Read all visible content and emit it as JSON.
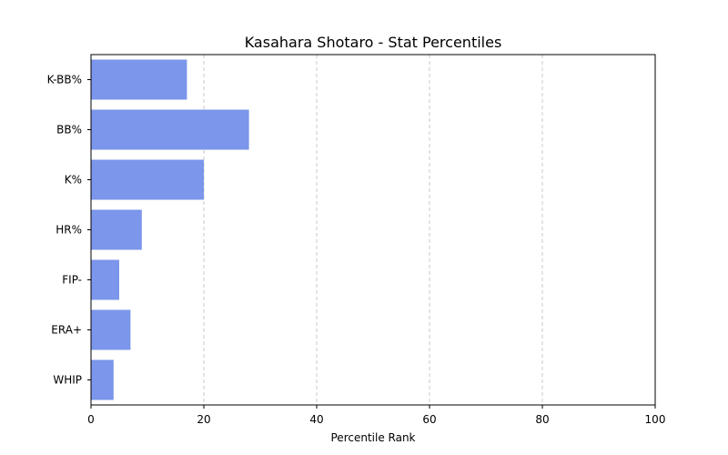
{
  "chart_data": {
    "type": "bar",
    "orientation": "horizontal",
    "title": "Kasahara Shotaro - Stat Percentiles",
    "xlabel": "Percentile Rank",
    "ylabel": "",
    "categories": [
      "K-BB%",
      "BB%",
      "K%",
      "HR%",
      "FIP-",
      "ERA+",
      "WHIP"
    ],
    "values": [
      17,
      28,
      20,
      9,
      5,
      7,
      4
    ],
    "xlim": [
      0,
      100
    ],
    "xticks": [
      0,
      20,
      40,
      60,
      80,
      100
    ],
    "grid": "x-dashed",
    "bar_color": "#7b96ea"
  }
}
